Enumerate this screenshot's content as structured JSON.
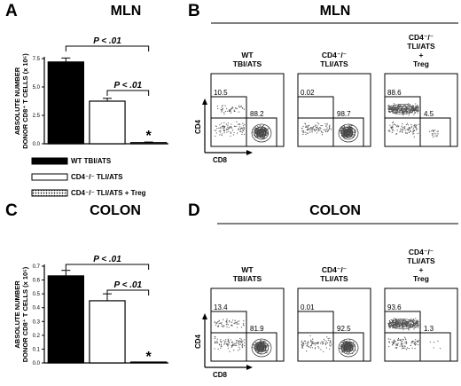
{
  "panels": {
    "A": {
      "letter": "A",
      "title": "MLN"
    },
    "B": {
      "letter": "B",
      "title": "MLN"
    },
    "C": {
      "letter": "C",
      "title": "COLON"
    },
    "D": {
      "letter": "D",
      "title": "COLON"
    }
  },
  "chart_data": [
    {
      "type": "bar",
      "panel": "A",
      "title": "MLN",
      "ylabel": "ABSOLUTE NUMBER DONOR CD8⁺ T CELLS (x 10⁵)",
      "ylabel_lines": [
        "ABSOLUTE NUMBER",
        "DONOR CD8⁺ T CELLS (x 10⁵)"
      ],
      "ylim": [
        0,
        7.5
      ],
      "yticks": [
        "0.0",
        "2.5",
        "5.0",
        "7.5"
      ],
      "categories": [
        "WT TBI/ATS",
        "CD4⁻/⁻ TLI/ATS",
        "CD4⁻/⁻ TLI/ATS + Treg"
      ],
      "values": [
        7.2,
        3.75,
        0.1
      ],
      "errors": [
        0.35,
        0.25,
        0.05
      ],
      "fills": [
        "#000000",
        "#ffffff",
        "#ffffff"
      ],
      "comparisons": [
        {
          "from": 0,
          "to": 2,
          "label": "P < .01"
        },
        {
          "from": 1,
          "to": 2,
          "label": "P < .01"
        }
      ],
      "asterisk": "*"
    },
    {
      "type": "bar",
      "panel": "C",
      "title": "COLON",
      "ylabel": "ABSOLUTE NUMBER DONOR CD8⁺ T CELLS (x 10⁵)",
      "ylabel_lines": [
        "ABSOLUTE NUMBER",
        "DONOR CD8⁺ T CELLS (x 10⁵)"
      ],
      "ylim": [
        0,
        0.7
      ],
      "yticks": [
        "0.0",
        "0.1",
        "0.2",
        "0.3",
        "0.4",
        "0.5",
        "0.6",
        "0.7"
      ],
      "categories": [
        "WT TBI/ATS",
        "CD4⁻/⁻ TLI/ATS",
        "CD4⁻/⁻ TLI/ATS + Treg"
      ],
      "values": [
        0.63,
        0.45,
        0.0
      ],
      "errors": [
        0.04,
        0.05,
        0.0
      ],
      "fills": [
        "#000000",
        "#ffffff",
        "#ffffff"
      ],
      "comparisons": [
        {
          "from": 0,
          "to": 2,
          "label": "P < .01"
        },
        {
          "from": 1,
          "to": 2,
          "label": "P < .01"
        }
      ],
      "asterisk": "*"
    }
  ],
  "legend": [
    {
      "label": "WT TBI/ATS",
      "fill": "#000000"
    },
    {
      "label": "CD4⁻/⁻ TLI/ATS",
      "fill": "#ffffff"
    },
    {
      "label": "CD4⁻/⁻ TLI/ATS + Treg",
      "fill": "pattern"
    }
  ],
  "flow": {
    "x_label": "CD8",
    "y_label": "CD4",
    "mln": [
      {
        "condition": [
          "WT",
          "TBI/ATS"
        ],
        "cd4_gate": "10.5",
        "cd8_gate": "88.2"
      },
      {
        "condition": [
          "CD4⁻/⁻",
          "TLI/ATS"
        ],
        "cd4_gate": "0.02",
        "cd8_gate": "98.7"
      },
      {
        "condition": [
          "CD4⁻/⁻",
          "TLI/ATS",
          "+",
          "Treg"
        ],
        "cd4_gate": "88.6",
        "cd8_gate": "4.5"
      }
    ],
    "colon": [
      {
        "condition": [
          "WT",
          "TBI/ATS"
        ],
        "cd4_gate": "13.4",
        "cd8_gate": "81.9"
      },
      {
        "condition": [
          "CD4⁻/⁻",
          "TLI/ATS"
        ],
        "cd4_gate": "0.01",
        "cd8_gate": "92.5"
      },
      {
        "condition": [
          "CD4⁻/⁻",
          "TLI/ATS",
          "+",
          "Treg"
        ],
        "cd4_gate": "93.6",
        "cd8_gate": "1.3"
      }
    ]
  },
  "colors": {
    "ink": "#000000",
    "dot": "#555555",
    "background": "#ffffff"
  }
}
